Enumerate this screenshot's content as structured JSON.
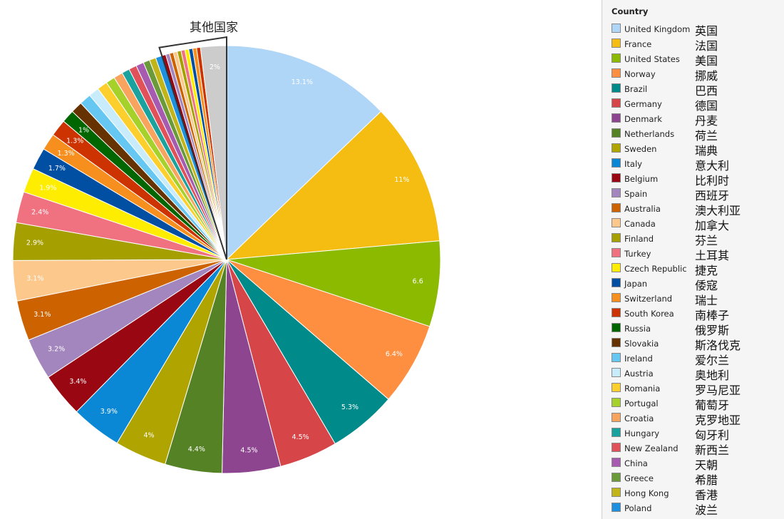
{
  "chart_data": {
    "type": "pie",
    "legend_title": "Country",
    "legend_position": "right",
    "others_label": "其他国家",
    "slices": [
      {
        "name": "United Kingdom",
        "zh": "英国",
        "value": 13.1,
        "label": "13.1%",
        "color": "#b0d6f7"
      },
      {
        "name": "France",
        "zh": "法国",
        "value": 11,
        "label": "11%",
        "color": "#f5bd12"
      },
      {
        "name": "United States",
        "zh": "美国",
        "value": 6.6,
        "label": "6.6",
        "color": "#8cba00"
      },
      {
        "name": "Norway",
        "zh": "挪威",
        "value": 6.4,
        "label": "6.4%",
        "color": "#ff8f40"
      },
      {
        "name": "Brazil",
        "zh": "巴西",
        "value": 5.3,
        "label": "5.3%",
        "color": "#008a8a"
      },
      {
        "name": "Germany",
        "zh": "德国",
        "value": 4.5,
        "label": "4.5%",
        "color": "#d64548"
      },
      {
        "name": "Denmark",
        "zh": "丹麦",
        "value": 4.5,
        "label": "4.5%",
        "color": "#8e4590"
      },
      {
        "name": "Netherlands",
        "zh": "荷兰",
        "value": 4.4,
        "label": "4.4%",
        "color": "#568226"
      },
      {
        "name": "Sweden",
        "zh": "瑞典",
        "value": 4,
        "label": "4%",
        "color": "#b0a400"
      },
      {
        "name": "Italy",
        "zh": "意大利",
        "value": 3.9,
        "label": "3.9%",
        "color": "#0a88d6"
      },
      {
        "name": "Belgium",
        "zh": "比利时",
        "value": 3.4,
        "label": "3.4%",
        "color": "#990712"
      },
      {
        "name": "Spain",
        "zh": "西班牙",
        "value": 3.2,
        "label": "3.2%",
        "color": "#a386bd"
      },
      {
        "name": "Australia",
        "zh": "澳大利亚",
        "value": 3.1,
        "label": "3.1%",
        "color": "#cc6300"
      },
      {
        "name": "Canada",
        "zh": "加拿大",
        "value": 3.1,
        "label": "3.1%",
        "color": "#fcc88c"
      },
      {
        "name": "Finland",
        "zh": "芬兰",
        "value": 2.9,
        "label": "2.9%",
        "color": "#a69f00"
      },
      {
        "name": "Turkey",
        "zh": "土耳其",
        "value": 2.4,
        "label": "2.4%",
        "color": "#f07280"
      },
      {
        "name": "Czech Republic",
        "zh": "捷克",
        "value": 1.9,
        "label": "1.9%",
        "color": "#ffed00"
      },
      {
        "name": "Japan",
        "zh": "倭寇",
        "value": 1.7,
        "label": "1.7%",
        "color": "#004fa3"
      },
      {
        "name": "Switzerland",
        "zh": "瑞士",
        "value": 1.3,
        "label": "1.3%",
        "color": "#f78f1e"
      },
      {
        "name": "South Korea",
        "zh": "南棒子",
        "value": 1.3,
        "label": "1.3%",
        "color": "#cc3300"
      },
      {
        "name": "Russia",
        "zh": "俄罗斯",
        "value": 1,
        "label": "1%",
        "color": "#006600"
      },
      {
        "name": "Slovakia",
        "zh": "斯洛伐克",
        "value": 0.9,
        "label": "",
        "color": "#663300"
      },
      {
        "name": "Ireland",
        "zh": "爱尔兰",
        "value": 0.9,
        "label": "",
        "color": "#66c8f2"
      },
      {
        "name": "Austria",
        "zh": "奥地利",
        "value": 0.8,
        "label": "",
        "color": "#c8ecfc"
      },
      {
        "name": "Romania",
        "zh": "罗马尼亚",
        "value": 0.8,
        "label": "",
        "color": "#fccf2c"
      },
      {
        "name": "Portugal",
        "zh": "葡萄牙",
        "value": 0.7,
        "label": "",
        "color": "#a6d12a"
      },
      {
        "name": "Croatia",
        "zh": "克罗地亚",
        "value": 0.7,
        "label": "",
        "color": "#f8a35e"
      },
      {
        "name": "Hungary",
        "zh": "匈牙利",
        "value": 0.6,
        "label": "",
        "color": "#1aa39e"
      },
      {
        "name": "New Zealand",
        "zh": "新西兰",
        "value": 0.6,
        "label": "",
        "color": "#e0515a"
      },
      {
        "name": "China",
        "zh": "天朝",
        "value": 0.6,
        "label": "",
        "color": "#a65bb0"
      },
      {
        "name": "Greece",
        "zh": "希腊",
        "value": 0.5,
        "label": "",
        "color": "#6b9a3a"
      },
      {
        "name": "Hong Kong",
        "zh": "香港",
        "value": 0.5,
        "label": "",
        "color": "#c2b51a"
      },
      {
        "name": "Poland",
        "zh": "波兰",
        "value": 0.5,
        "label": "",
        "color": "#1e90e0"
      }
    ],
    "others_slices": [
      {
        "value": 0.3,
        "color": "#990712"
      },
      {
        "value": 0.3,
        "color": "#a386bd"
      },
      {
        "value": 0.3,
        "color": "#cc6300"
      },
      {
        "value": 0.3,
        "color": "#fcc88c"
      },
      {
        "value": 0.3,
        "color": "#a69f00"
      },
      {
        "value": 0.3,
        "color": "#f07280"
      },
      {
        "value": 0.3,
        "color": "#ffed00"
      },
      {
        "value": 0.3,
        "color": "#004fa3"
      },
      {
        "value": 0.3,
        "color": "#f78f1e"
      },
      {
        "value": 0.3,
        "color": "#cc3300"
      }
    ],
    "remainder": {
      "value": 2,
      "label": "2%",
      "color": "#cccccc"
    }
  }
}
